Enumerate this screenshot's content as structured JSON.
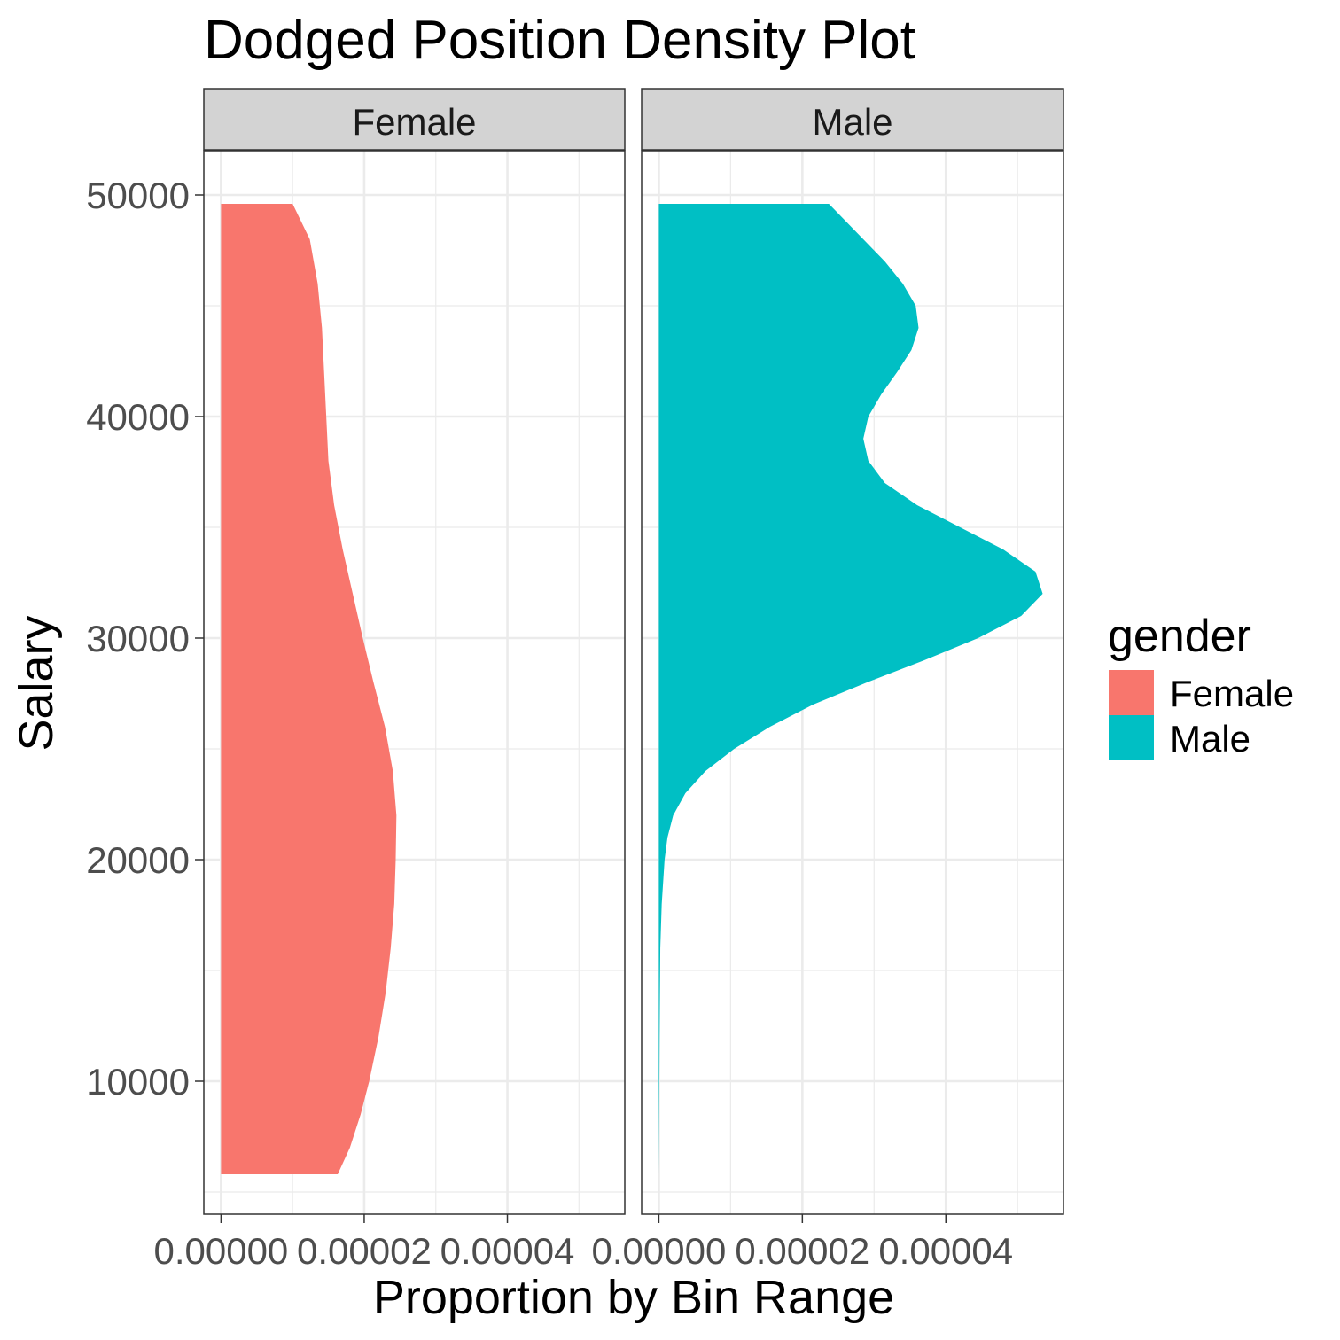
{
  "chart_data": {
    "type": "area",
    "title": "Dodged Position Density Plot",
    "xlabel": "Proportion by Bin Range",
    "ylabel": "Salary",
    "ylim": [
      4000,
      52000
    ],
    "xlim": [
      -2.4e-06,
      5.64e-05
    ],
    "y_ticks": [
      10000,
      20000,
      30000,
      40000,
      50000
    ],
    "y_tick_labels": [
      "10000",
      "20000",
      "30000",
      "40000",
      "50000"
    ],
    "x_ticks": [
      0,
      2e-05,
      4e-05
    ],
    "x_tick_labels": [
      "0.00000",
      "0.00002",
      "0.00004"
    ],
    "grid": true,
    "legend": {
      "title": "gender",
      "position": "right",
      "entries": [
        {
          "label": "Female",
          "color": "#F8766D"
        },
        {
          "label": "Male",
          "color": "#00BFC4"
        }
      ]
    },
    "panels": [
      {
        "strip": "Female",
        "color": "#F8766D",
        "points": [
          [
            5800,
            1.63e-05
          ],
          [
            7000,
            1.8e-05
          ],
          [
            8500,
            1.95e-05
          ],
          [
            10000,
            2.07e-05
          ],
          [
            12000,
            2.2e-05
          ],
          [
            14000,
            2.3e-05
          ],
          [
            16000,
            2.37e-05
          ],
          [
            18000,
            2.42e-05
          ],
          [
            20000,
            2.44e-05
          ],
          [
            22000,
            2.45e-05
          ],
          [
            24000,
            2.4e-05
          ],
          [
            26000,
            2.29e-05
          ],
          [
            28000,
            2.13e-05
          ],
          [
            30000,
            1.98e-05
          ],
          [
            32000,
            1.84e-05
          ],
          [
            34000,
            1.7e-05
          ],
          [
            36000,
            1.58e-05
          ],
          [
            38000,
            1.5e-05
          ],
          [
            40000,
            1.47e-05
          ],
          [
            42000,
            1.44e-05
          ],
          [
            44000,
            1.41e-05
          ],
          [
            46000,
            1.35e-05
          ],
          [
            48000,
            1.24e-05
          ],
          [
            49600,
            1e-05
          ]
        ]
      },
      {
        "strip": "Male",
        "color": "#00BFC4",
        "points": [
          [
            5800,
            0.0
          ],
          [
            12000,
            1e-07
          ],
          [
            16000,
            2e-07
          ],
          [
            18000,
            4e-07
          ],
          [
            20000,
            8e-07
          ],
          [
            21000,
            1.2e-06
          ],
          [
            22000,
            2e-06
          ],
          [
            23000,
            3.7e-06
          ],
          [
            24000,
            6.5e-06
          ],
          [
            25000,
            1.05e-05
          ],
          [
            26000,
            1.55e-05
          ],
          [
            27000,
            2.15e-05
          ],
          [
            28000,
            2.9e-05
          ],
          [
            29000,
            3.7e-05
          ],
          [
            30000,
            4.45e-05
          ],
          [
            31000,
            5.05e-05
          ],
          [
            32000,
            5.35e-05
          ],
          [
            33000,
            5.25e-05
          ],
          [
            34000,
            4.8e-05
          ],
          [
            35000,
            4.2e-05
          ],
          [
            36000,
            3.6e-05
          ],
          [
            37000,
            3.15e-05
          ],
          [
            38000,
            2.92e-05
          ],
          [
            39000,
            2.85e-05
          ],
          [
            40000,
            2.92e-05
          ],
          [
            41000,
            3.1e-05
          ],
          [
            42000,
            3.32e-05
          ],
          [
            43000,
            3.52e-05
          ],
          [
            44000,
            3.62e-05
          ],
          [
            45000,
            3.58e-05
          ],
          [
            46000,
            3.4e-05
          ],
          [
            47000,
            3.15e-05
          ],
          [
            48000,
            2.85e-05
          ],
          [
            49000,
            2.55e-05
          ],
          [
            49600,
            2.37e-05
          ]
        ]
      }
    ]
  }
}
